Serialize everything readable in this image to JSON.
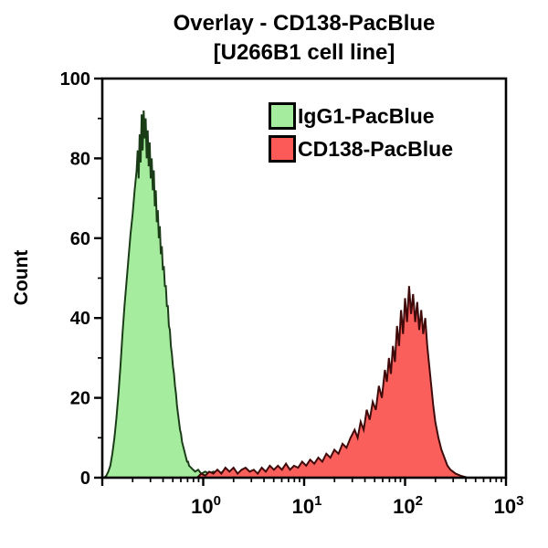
{
  "title": {
    "line1": "Overlay - CD138-PacBlue",
    "line2": "[U266B1 cell line]"
  },
  "legend": {
    "items": [
      {
        "label": "IgG1-PacBlue",
        "color": "#A6EC9E",
        "border": "#000000"
      },
      {
        "label": "CD138-PacBlue",
        "color": "#FB5A58",
        "border": "#000000"
      }
    ]
  },
  "colors": {
    "background": "#ffffff",
    "axis": "#000000",
    "text": "#000000",
    "green_fill": "#A6EC9E",
    "green_stroke": "#1A3D18",
    "red_fill": "#FB5F5C",
    "red_stroke": "#400A0A"
  },
  "chart_data": {
    "type": "area",
    "subtype": "flow-cytometry-histogram-overlay",
    "title": "Overlay - CD138-PacBlue [U266B1 cell line]",
    "xlabel": "",
    "ylabel": "Count",
    "xscale": "log10",
    "xlim_log10": [
      -1,
      3
    ],
    "ylim": [
      0,
      100
    ],
    "grid": false,
    "legend_position": "top-center-inside",
    "x_major_ticks_log10": [
      -1,
      0,
      1,
      2,
      3
    ],
    "x_tick_labels": [
      {
        "log10": 0,
        "base": "10",
        "exp": "0"
      },
      {
        "log10": 1,
        "base": "10",
        "exp": "1"
      },
      {
        "log10": 2,
        "base": "10",
        "exp": "2"
      },
      {
        "log10": 3,
        "base": "10",
        "exp": "3"
      }
    ],
    "y_major_ticks": [
      0,
      20,
      40,
      60,
      80,
      100
    ],
    "y_minor_ticks": [
      10,
      30,
      50,
      70,
      90
    ],
    "series": [
      {
        "name": "IgG1-PacBlue",
        "fill": "#A6EC9E",
        "stroke": "#1A3D18",
        "peak_x": 0.3,
        "peak_count": 92,
        "points_log10x_count": [
          [
            -0.98,
            0
          ],
          [
            -0.96,
            0.5
          ],
          [
            -0.94,
            1.5
          ],
          [
            -0.92,
            3
          ],
          [
            -0.9,
            6
          ],
          [
            -0.88,
            10
          ],
          [
            -0.86,
            15
          ],
          [
            -0.84,
            21
          ],
          [
            -0.82,
            28
          ],
          [
            -0.8,
            36
          ],
          [
            -0.78,
            43
          ],
          [
            -0.76,
            49
          ],
          [
            -0.74,
            55
          ],
          [
            -0.72,
            61
          ],
          [
            -0.7,
            66
          ],
          [
            -0.68,
            72
          ],
          [
            -0.66,
            77
          ],
          [
            -0.65,
            82
          ],
          [
            -0.64,
            75
          ],
          [
            -0.63,
            86
          ],
          [
            -0.62,
            79
          ],
          [
            -0.61,
            91
          ],
          [
            -0.6,
            82
          ],
          [
            -0.59,
            92
          ],
          [
            -0.58,
            85
          ],
          [
            -0.57,
            90
          ],
          [
            -0.56,
            80
          ],
          [
            -0.55,
            87
          ],
          [
            -0.54,
            78
          ],
          [
            -0.53,
            84
          ],
          [
            -0.52,
            75
          ],
          [
            -0.51,
            80
          ],
          [
            -0.5,
            72
          ],
          [
            -0.49,
            77
          ],
          [
            -0.48,
            68
          ],
          [
            -0.47,
            72
          ],
          [
            -0.46,
            64
          ],
          [
            -0.45,
            67
          ],
          [
            -0.44,
            60
          ],
          [
            -0.43,
            63
          ],
          [
            -0.42,
            56
          ],
          [
            -0.41,
            58
          ],
          [
            -0.4,
            52
          ],
          [
            -0.39,
            53
          ],
          [
            -0.38,
            48
          ],
          [
            -0.37,
            48
          ],
          [
            -0.36,
            43
          ],
          [
            -0.35,
            43
          ],
          [
            -0.34,
            38
          ],
          [
            -0.33,
            37
          ],
          [
            -0.32,
            33
          ],
          [
            -0.31,
            31
          ],
          [
            -0.3,
            28
          ],
          [
            -0.29,
            26
          ],
          [
            -0.28,
            23
          ],
          [
            -0.27,
            21
          ],
          [
            -0.26,
            18
          ],
          [
            -0.25,
            16
          ],
          [
            -0.24,
            14
          ],
          [
            -0.23,
            12
          ],
          [
            -0.22,
            11
          ],
          [
            -0.21,
            9
          ],
          [
            -0.2,
            8
          ],
          [
            -0.19,
            7
          ],
          [
            -0.18,
            6
          ],
          [
            -0.17,
            5
          ],
          [
            -0.16,
            4
          ],
          [
            -0.15,
            4
          ],
          [
            -0.14,
            3
          ],
          [
            -0.12,
            2.5
          ],
          [
            -0.1,
            2
          ],
          [
            -0.08,
            1.5
          ],
          [
            -0.05,
            2
          ],
          [
            -0.02,
            1
          ],
          [
            0.02,
            1.5
          ],
          [
            0.06,
            1
          ],
          [
            0.1,
            1.5
          ],
          [
            0.15,
            1
          ],
          [
            0.2,
            1.5
          ],
          [
            0.25,
            1
          ],
          [
            0.3,
            0.5
          ],
          [
            0.36,
            1
          ],
          [
            0.42,
            0.5
          ],
          [
            0.5,
            0
          ]
        ]
      },
      {
        "name": "CD138-PacBlue",
        "fill": "#FB5F5C",
        "stroke": "#400A0A",
        "peak_x": 100,
        "peak_count": 48,
        "points_log10x_count": [
          [
            -0.06,
            0
          ],
          [
            -0.02,
            1
          ],
          [
            0.02,
            0.5
          ],
          [
            0.06,
            1.5
          ],
          [
            0.1,
            1
          ],
          [
            0.14,
            2
          ],
          [
            0.18,
            1
          ],
          [
            0.22,
            2.5
          ],
          [
            0.26,
            1.5
          ],
          [
            0.3,
            2.5
          ],
          [
            0.34,
            1
          ],
          [
            0.38,
            2
          ],
          [
            0.42,
            2.5
          ],
          [
            0.46,
            1.5
          ],
          [
            0.5,
            2
          ],
          [
            0.54,
            1
          ],
          [
            0.58,
            2.5
          ],
          [
            0.62,
            1.5
          ],
          [
            0.66,
            3
          ],
          [
            0.7,
            2
          ],
          [
            0.74,
            3
          ],
          [
            0.78,
            2
          ],
          [
            0.82,
            3.5
          ],
          [
            0.86,
            2
          ],
          [
            0.9,
            3
          ],
          [
            0.94,
            2.5
          ],
          [
            0.98,
            4
          ],
          [
            1.02,
            3
          ],
          [
            1.06,
            4.5
          ],
          [
            1.1,
            3.5
          ],
          [
            1.14,
            5
          ],
          [
            1.18,
            4
          ],
          [
            1.22,
            6
          ],
          [
            1.26,
            5
          ],
          [
            1.3,
            7
          ],
          [
            1.34,
            6
          ],
          [
            1.38,
            8.5
          ],
          [
            1.42,
            7.5
          ],
          [
            1.46,
            10
          ],
          [
            1.5,
            12
          ],
          [
            1.53,
            10
          ],
          [
            1.56,
            14
          ],
          [
            1.59,
            12
          ],
          [
            1.62,
            17
          ],
          [
            1.65,
            14.5
          ],
          [
            1.68,
            19
          ],
          [
            1.71,
            17
          ],
          [
            1.74,
            23
          ],
          [
            1.77,
            20
          ],
          [
            1.8,
            27
          ],
          [
            1.82,
            24
          ],
          [
            1.84,
            30
          ],
          [
            1.86,
            26
          ],
          [
            1.88,
            33
          ],
          [
            1.9,
            29
          ],
          [
            1.92,
            38
          ],
          [
            1.94,
            33
          ],
          [
            1.96,
            42
          ],
          [
            1.98,
            36
          ],
          [
            2.0,
            45
          ],
          [
            2.02,
            39
          ],
          [
            2.04,
            48
          ],
          [
            2.06,
            41
          ],
          [
            2.08,
            46
          ],
          [
            2.1,
            39
          ],
          [
            2.12,
            44
          ],
          [
            2.14,
            37
          ],
          [
            2.16,
            42
          ],
          [
            2.18,
            36
          ],
          [
            2.2,
            40
          ],
          [
            2.22,
            33
          ],
          [
            2.24,
            28
          ],
          [
            2.26,
            23
          ],
          [
            2.28,
            18
          ],
          [
            2.3,
            14
          ],
          [
            2.33,
            10
          ],
          [
            2.36,
            7
          ],
          [
            2.39,
            5
          ],
          [
            2.42,
            3
          ],
          [
            2.45,
            2
          ],
          [
            2.5,
            1
          ],
          [
            2.55,
            0.5
          ],
          [
            2.62,
            0
          ]
        ]
      }
    ]
  }
}
